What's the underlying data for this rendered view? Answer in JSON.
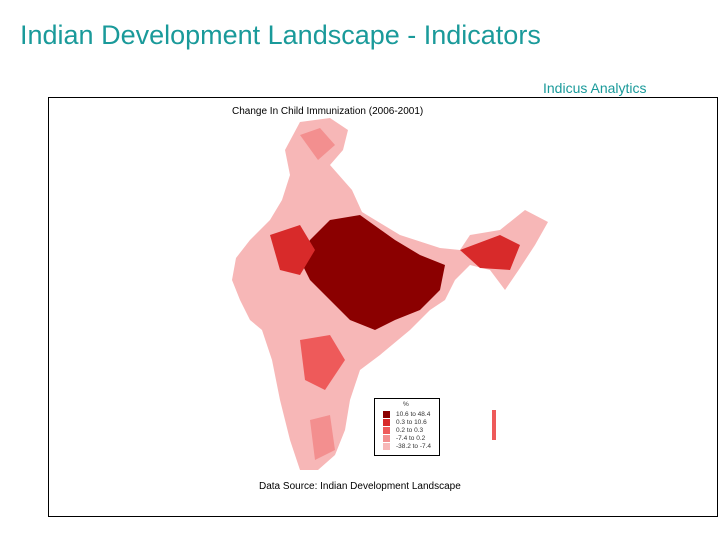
{
  "header": {
    "title": "Indian Development Landscape - Indicators",
    "subtitle": "Indicus Analytics"
  },
  "map": {
    "title": "Change In Child Immunization (2006-2001)",
    "source": "Data Source: Indian Development Landscape",
    "legend": {
      "unit": "%",
      "items": [
        {
          "label": "10.6 to 48.4",
          "color": "#8b0000"
        },
        {
          "label": "0.3 to 10.6",
          "color": "#d82a2a"
        },
        {
          "label": "0.2 to 0.3",
          "color": "#ee5a5a"
        },
        {
          "label": "-7.4 to 0.2",
          "color": "#f38f8f"
        },
        {
          "label": "-38.2 to -7.4",
          "color": "#f7b7b7"
        }
      ]
    }
  }
}
